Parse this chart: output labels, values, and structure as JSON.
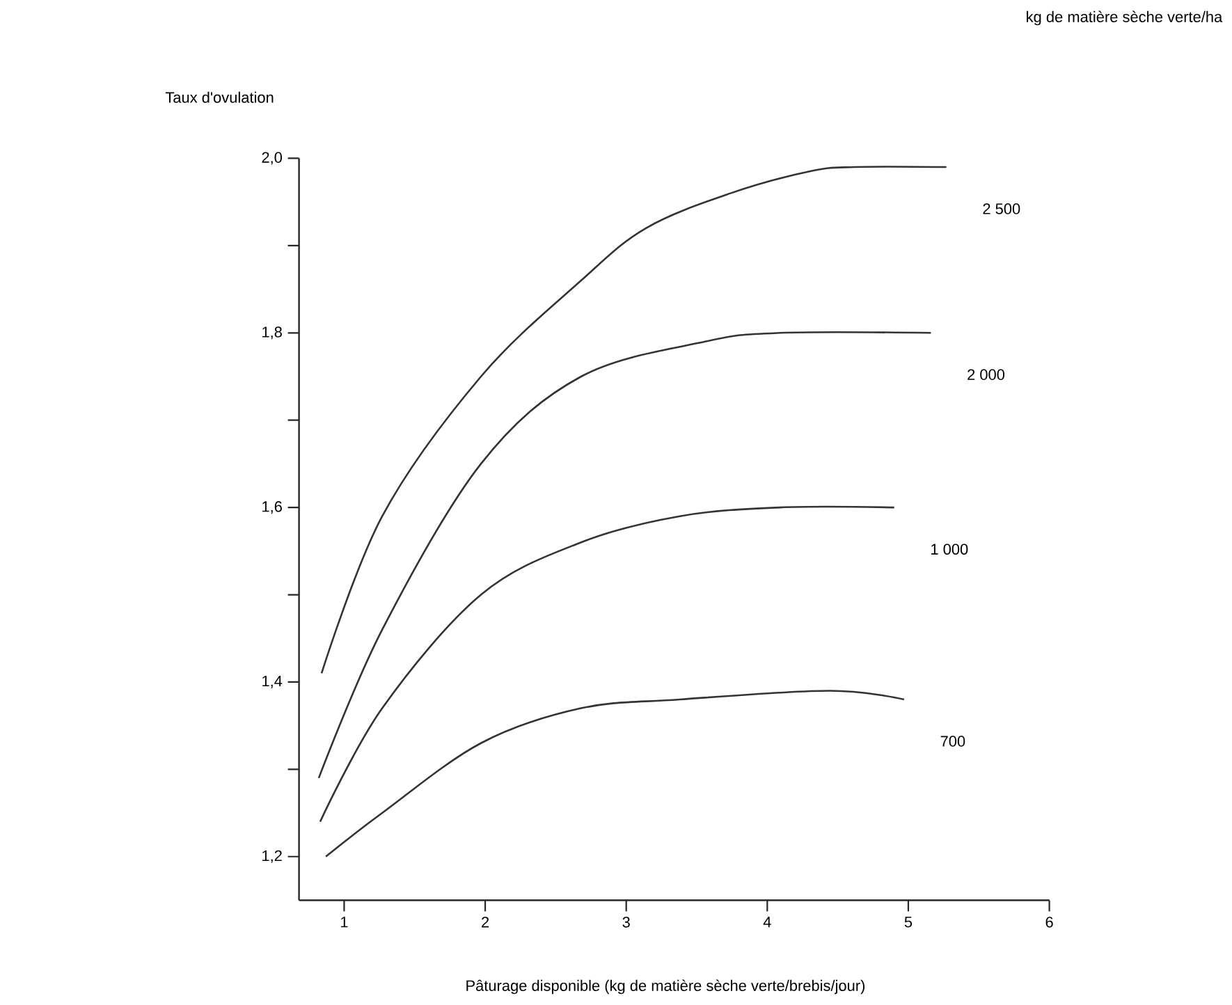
{
  "chart_data": {
    "type": "line",
    "xlabel": "Pâturage disponible (kg de matière sèche verte/brebis/jour)",
    "ylabel": "Taux d'ovulation",
    "legend_title": "kg de matière sèche verte/ha",
    "xlim": [
      0.68,
      6
    ],
    "ylim": [
      1.15,
      2.0
    ],
    "xticks": [
      1,
      2,
      3,
      4,
      5,
      6
    ],
    "yticks": [
      {
        "value": 1.2,
        "label": "1,2"
      },
      {
        "value": 1.3,
        "label": null
      },
      {
        "value": 1.4,
        "label": "1,4"
      },
      {
        "value": 1.5,
        "label": null
      },
      {
        "value": 1.6,
        "label": "1,6"
      },
      {
        "value": 1.7,
        "label": null
      },
      {
        "value": 1.8,
        "label": "1,8"
      },
      {
        "value": 1.9,
        "label": null
      },
      {
        "value": 2.0,
        "label": "2,0"
      }
    ],
    "series": [
      {
        "name": "2 500",
        "color": "#333333",
        "x": [
          0.84,
          1.27,
          1.97,
          2.68,
          3.14,
          3.74,
          4.3,
          4.62,
          5.27
        ],
        "values": [
          1.41,
          1.59,
          1.75,
          1.86,
          1.92,
          1.96,
          1.985,
          1.99,
          1.99
        ]
      },
      {
        "name": "2 000",
        "color": "#333333",
        "x": [
          0.82,
          1.27,
          1.97,
          2.68,
          3.56,
          4.09,
          5.16
        ],
        "values": [
          1.29,
          1.46,
          1.65,
          1.75,
          1.79,
          1.8,
          1.8
        ]
      },
      {
        "name": "1 000",
        "color": "#333333",
        "x": [
          0.83,
          1.27,
          1.97,
          2.68,
          3.38,
          4.09,
          4.9
        ],
        "values": [
          1.24,
          1.37,
          1.5,
          1.56,
          1.59,
          1.6,
          1.6
        ]
      },
      {
        "name": "700",
        "color": "#333333",
        "x": [
          0.87,
          1.27,
          1.97,
          2.68,
          3.38,
          4.44,
          4.97
        ],
        "values": [
          1.2,
          1.25,
          1.33,
          1.37,
          1.38,
          1.39,
          1.38
        ]
      }
    ]
  }
}
